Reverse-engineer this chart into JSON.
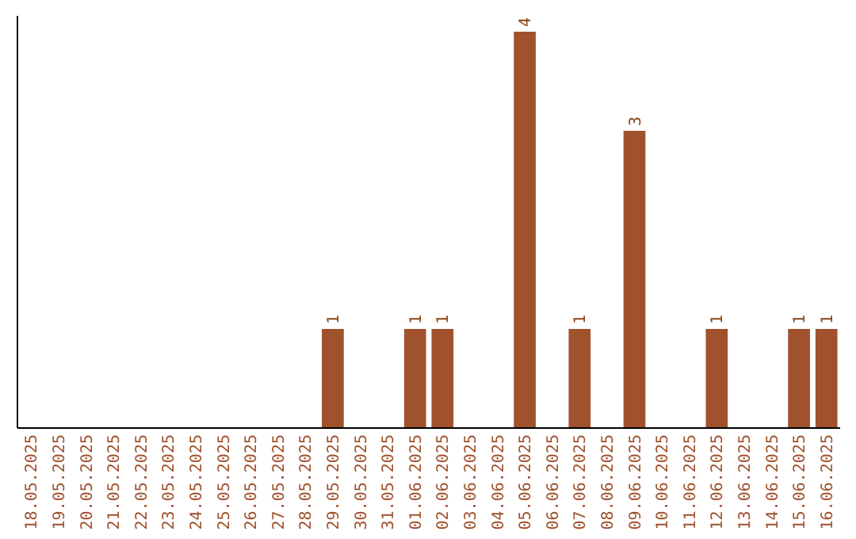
{
  "chart_data": {
    "type": "bar",
    "categories": [
      "18.05.2025",
      "19.05.2025",
      "20.05.2025",
      "21.05.2025",
      "22.05.2025",
      "23.05.2025",
      "24.05.2025",
      "25.05.2025",
      "26.05.2025",
      "27.05.2025",
      "28.05.2025",
      "29.05.2025",
      "30.05.2025",
      "31.05.2025",
      "01.06.2025",
      "02.06.2025",
      "03.06.2025",
      "04.06.2025",
      "05.06.2025",
      "06.06.2025",
      "07.06.2025",
      "08.06.2025",
      "09.06.2025",
      "10.06.2025",
      "11.06.2025",
      "12.06.2025",
      "13.06.2025",
      "14.06.2025",
      "15.06.2025",
      "16.06.2025"
    ],
    "values": [
      0,
      0,
      0,
      0,
      0,
      0,
      0,
      0,
      0,
      0,
      0,
      1,
      0,
      0,
      1,
      1,
      0,
      0,
      4,
      0,
      1,
      0,
      3,
      0,
      0,
      1,
      0,
      0,
      1,
      1
    ],
    "value_labels": [
      null,
      null,
      null,
      null,
      null,
      null,
      null,
      null,
      null,
      null,
      null,
      "1",
      null,
      null,
      "1",
      "1",
      null,
      null,
      "4",
      null,
      "1",
      null,
      "3",
      null,
      null,
      "1",
      null,
      null,
      "1",
      "1"
    ],
    "color": "#a0522d"
  }
}
